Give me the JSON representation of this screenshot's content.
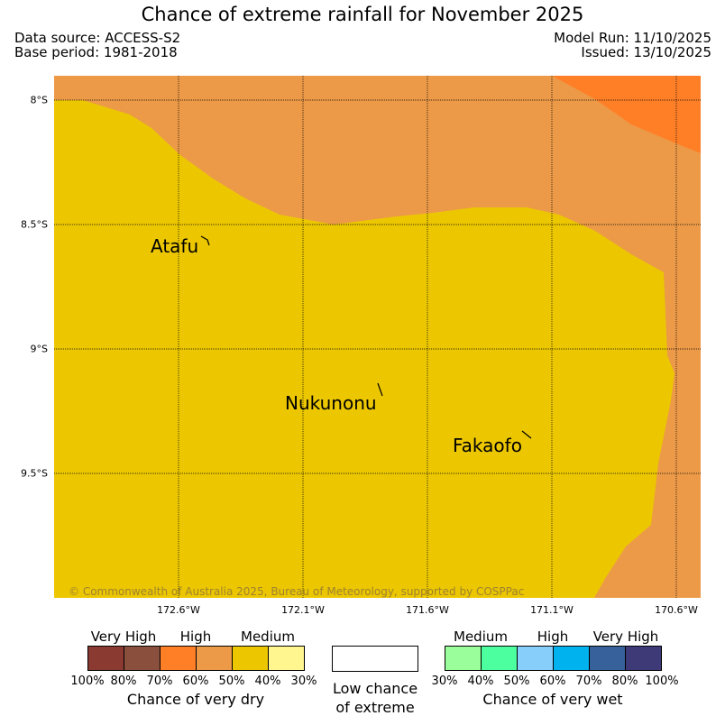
{
  "header": {
    "title": "Chance of extreme rainfall for November 2025",
    "data_source": "Data source: ACCESS-S2",
    "base_period": "Base period: 1981-2018",
    "model_run": "Model Run: 11/10/2025",
    "issued": "Issued: 13/10/2025"
  },
  "map": {
    "lat_labels": [
      "8°S",
      "8.5°S",
      "9°S",
      "9.5°S"
    ],
    "lon_labels": [
      "172.6°W",
      "172.1°W",
      "171.6°W",
      "171.1°W",
      "170.6°W"
    ],
    "places": [
      "Atafu",
      "Nukunonu",
      "Fakaofo"
    ],
    "copyright": "© Commonwealth of Australia 2025, Bureau of Meteorology, supported by COSPPac",
    "colors": {
      "medium_dry": "#ecc700",
      "high_dry": "#ec9a48",
      "veryhigh_dry": "#ff7f27"
    }
  },
  "legend": {
    "dry": {
      "categories": [
        "Very High",
        "High",
        "Medium"
      ],
      "percents": [
        "100%",
        "80%",
        "70%",
        "60%",
        "50%",
        "40%",
        "30%"
      ],
      "colors": [
        "#8b3a32",
        "#8b4f3d",
        "#ff7f27",
        "#ec9a48",
        "#ecc700",
        "#fff68f"
      ],
      "title": "Chance of very dry"
    },
    "low": {
      "line1": "Low chance",
      "line2": "of extreme"
    },
    "wet": {
      "categories": [
        "Medium",
        "High",
        "Very High"
      ],
      "percents": [
        "30%",
        "40%",
        "50%",
        "60%",
        "70%",
        "80%",
        "100%"
      ],
      "colors": [
        "#9aff9a",
        "#4cff9f",
        "#87cefa",
        "#00b2ee",
        "#36619b",
        "#3e3a78"
      ],
      "title": "Chance of very wet"
    }
  }
}
